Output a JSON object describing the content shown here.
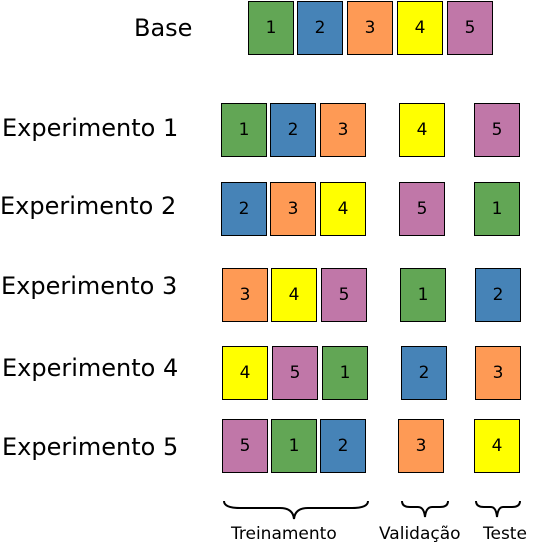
{
  "colors": {
    "1": "#62a655",
    "2": "#4683b7",
    "3": "#fe9a55",
    "4": "#ffff00",
    "5": "#c077a8"
  },
  "base": {
    "label": "Base",
    "folds": [
      "1",
      "2",
      "3",
      "4",
      "5"
    ]
  },
  "experiments": [
    {
      "label": "Experimento 1",
      "train": [
        "1",
        "2",
        "3"
      ],
      "validation": "4",
      "test": "5"
    },
    {
      "label": "Experimento 2",
      "train": [
        "2",
        "3",
        "4"
      ],
      "validation": "5",
      "test": "1"
    },
    {
      "label": "Experimento 3",
      "train": [
        "3",
        "4",
        "5"
      ],
      "validation": "1",
      "test": "2"
    },
    {
      "label": "Experimento 4",
      "train": [
        "4",
        "5",
        "1"
      ],
      "validation": "2",
      "test": "3"
    },
    {
      "label": "Experimento 5",
      "train": [
        "5",
        "1",
        "2"
      ],
      "validation": "3",
      "test": "4"
    }
  ],
  "legend": {
    "train": "Treinamento",
    "validation": "Validação",
    "test": "Teste"
  }
}
